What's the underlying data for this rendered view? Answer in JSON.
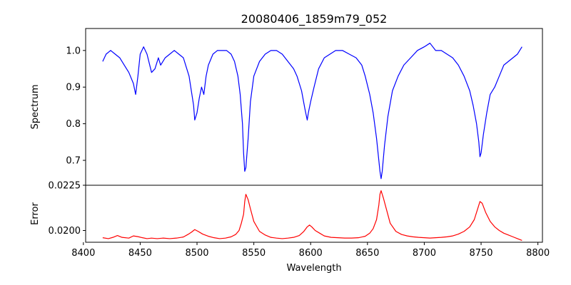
{
  "chart_data": {
    "type": "line",
    "title": "20080406_1859m79_052",
    "xlabel": "Wavelength",
    "xlim": [
      8402,
      8804
    ],
    "xticks": [
      8400,
      8450,
      8500,
      8550,
      8600,
      8650,
      8700,
      8750,
      8800
    ],
    "grid": false,
    "panels": [
      {
        "ylabel": "Spectrum",
        "ylim": [
          0.632,
          1.06
        ],
        "yticks": [
          "1.0",
          "0.9",
          "0.8",
          "0.7"
        ],
        "ytick_values": [
          1.0,
          0.9,
          0.8,
          0.7
        ],
        "color": "#0000ff",
        "x": [
          8417,
          8420,
          8424,
          8428,
          8432,
          8436,
          8440,
          8444,
          8446,
          8448,
          8450,
          8453,
          8456,
          8460,
          8463,
          8466,
          8468,
          8472,
          8476,
          8480,
          8484,
          8488,
          8490,
          8493,
          8495,
          8497,
          8498,
          8500,
          8502,
          8504,
          8506,
          8508,
          8510,
          8514,
          8518,
          8522,
          8526,
          8530,
          8533,
          8536,
          8538,
          8540,
          8541,
          8542,
          8543,
          8545,
          8547,
          8550,
          8555,
          8560,
          8565,
          8570,
          8575,
          8580,
          8585,
          8588,
          8592,
          8595,
          8597,
          8598,
          8600,
          8603,
          8607,
          8612,
          8617,
          8622,
          8628,
          8634,
          8640,
          8645,
          8648,
          8652,
          8655,
          8658,
          8660,
          8661,
          8662,
          8663,
          8665,
          8668,
          8672,
          8677,
          8682,
          8688,
          8694,
          8700,
          8705,
          8710,
          8715,
          8720,
          8725,
          8730,
          8735,
          8740,
          8743,
          8746,
          8748,
          8749,
          8750,
          8752,
          8755,
          8758,
          8762,
          8766,
          8770,
          8774,
          8778,
          8782,
          8786
        ],
        "y": [
          0.97,
          0.99,
          1.0,
          0.99,
          0.98,
          0.96,
          0.94,
          0.91,
          0.88,
          0.93,
          0.99,
          1.01,
          0.99,
          0.94,
          0.95,
          0.98,
          0.96,
          0.98,
          0.99,
          1.0,
          0.99,
          0.98,
          0.96,
          0.93,
          0.89,
          0.85,
          0.81,
          0.83,
          0.87,
          0.9,
          0.88,
          0.93,
          0.96,
          0.99,
          1.0,
          1.0,
          1.0,
          0.99,
          0.97,
          0.93,
          0.88,
          0.8,
          0.72,
          0.67,
          0.68,
          0.76,
          0.86,
          0.93,
          0.97,
          0.99,
          1.0,
          1.0,
          0.99,
          0.97,
          0.95,
          0.93,
          0.89,
          0.84,
          0.81,
          0.83,
          0.86,
          0.9,
          0.95,
          0.98,
          0.99,
          1.0,
          1.0,
          0.99,
          0.98,
          0.96,
          0.93,
          0.88,
          0.83,
          0.76,
          0.7,
          0.67,
          0.65,
          0.67,
          0.74,
          0.82,
          0.89,
          0.93,
          0.96,
          0.98,
          1.0,
          1.01,
          1.02,
          1.0,
          1.0,
          0.99,
          0.98,
          0.96,
          0.93,
          0.89,
          0.85,
          0.8,
          0.75,
          0.71,
          0.72,
          0.77,
          0.83,
          0.88,
          0.9,
          0.93,
          0.96,
          0.97,
          0.98,
          0.99,
          1.01
        ]
      },
      {
        "ylabel": "Error",
        "ylim": [
          0.01935,
          0.0225
        ],
        "yticks": [
          "0.0225",
          "0.0200"
        ],
        "ytick_values": [
          0.0225,
          0.02
        ],
        "color": "#ff0000",
        "x": [
          8417,
          8422,
          8426,
          8430,
          8434,
          8440,
          8444,
          8448,
          8452,
          8456,
          8460,
          8465,
          8470,
          8476,
          8482,
          8488,
          8492,
          8495,
          8498,
          8501,
          8505,
          8510,
          8515,
          8520,
          8525,
          8530,
          8534,
          8537,
          8539,
          8541,
          8542,
          8543,
          8545,
          8547,
          8550,
          8555,
          8560,
          8565,
          8570,
          8575,
          8580,
          8585,
          8590,
          8594,
          8597,
          8599,
          8601,
          8604,
          8608,
          8612,
          8618,
          8624,
          8630,
          8636,
          8642,
          8648,
          8652,
          8655,
          8658,
          8660,
          8661,
          8662,
          8664,
          8667,
          8670,
          8675,
          8680,
          8685,
          8690,
          8695,
          8700,
          8705,
          8710,
          8715,
          8720,
          8725,
          8730,
          8735,
          8740,
          8744,
          8747,
          8749,
          8751,
          8754,
          8758,
          8762,
          8766,
          8770,
          8774,
          8778,
          8782,
          8786
        ],
        "y": [
          0.0196,
          0.01955,
          0.01962,
          0.01972,
          0.01962,
          0.01958,
          0.0197,
          0.01966,
          0.0196,
          0.01955,
          0.01958,
          0.01955,
          0.01958,
          0.01955,
          0.01958,
          0.01964,
          0.01978,
          0.0199,
          0.02005,
          0.01995,
          0.0198,
          0.01968,
          0.0196,
          0.01955,
          0.01958,
          0.01965,
          0.01978,
          0.02,
          0.0204,
          0.0209,
          0.0216,
          0.022,
          0.0217,
          0.0212,
          0.0205,
          0.01995,
          0.01975,
          0.01962,
          0.01958,
          0.01955,
          0.01958,
          0.01962,
          0.01972,
          0.01995,
          0.0202,
          0.0203,
          0.0202,
          0.02,
          0.01985,
          0.0197,
          0.01962,
          0.0196,
          0.01958,
          0.01958,
          0.0196,
          0.01968,
          0.01985,
          0.0201,
          0.0206,
          0.0214,
          0.022,
          0.0222,
          0.0218,
          0.0211,
          0.0204,
          0.01995,
          0.01978,
          0.0197,
          0.01965,
          0.01962,
          0.0196,
          0.01958,
          0.0196,
          0.01962,
          0.01965,
          0.0197,
          0.0198,
          0.01995,
          0.0202,
          0.0206,
          0.0212,
          0.0216,
          0.0215,
          0.021,
          0.0205,
          0.0202,
          0.02,
          0.01985,
          0.01975,
          0.01965,
          0.01955,
          0.01945
        ]
      }
    ]
  }
}
